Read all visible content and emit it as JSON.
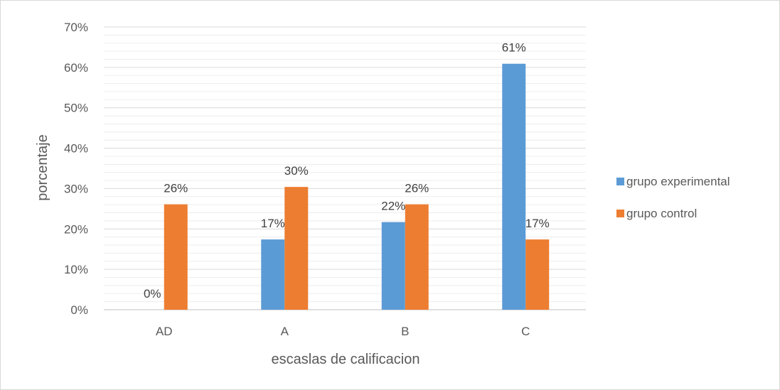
{
  "chart_data": {
    "type": "bar",
    "title": "",
    "xlabel": "escaslas de calificacion",
    "ylabel": "porcentaje",
    "categories": [
      "AD",
      "A",
      "B",
      "C"
    ],
    "series": [
      {
        "name": "grupo experimental",
        "color": "#5B9BD5",
        "values": [
          0,
          17.4,
          21.7,
          60.9
        ],
        "labels": [
          "0%",
          "17%",
          "22%",
          "61%"
        ]
      },
      {
        "name": "grupo control",
        "color": "#ED7D31",
        "values": [
          26.1,
          30.4,
          26.1,
          17.4
        ],
        "labels": [
          "26%",
          "30%",
          "26%",
          "17%"
        ]
      }
    ],
    "ylim": [
      0,
      70
    ],
    "yticks": [
      0,
      10,
      20,
      30,
      40,
      50,
      60,
      70
    ],
    "ytick_labels": [
      "0%",
      "10%",
      "20%",
      "30%",
      "40%",
      "50%",
      "60%",
      "70%"
    ],
    "grid": true,
    "minor_grid": true,
    "legend_position": "right",
    "colors": {
      "grid_major": "#d9d9d9",
      "grid_minor": "#ededed",
      "axis": "#bfbfbf",
      "frame": "#d9d9d9"
    }
  }
}
